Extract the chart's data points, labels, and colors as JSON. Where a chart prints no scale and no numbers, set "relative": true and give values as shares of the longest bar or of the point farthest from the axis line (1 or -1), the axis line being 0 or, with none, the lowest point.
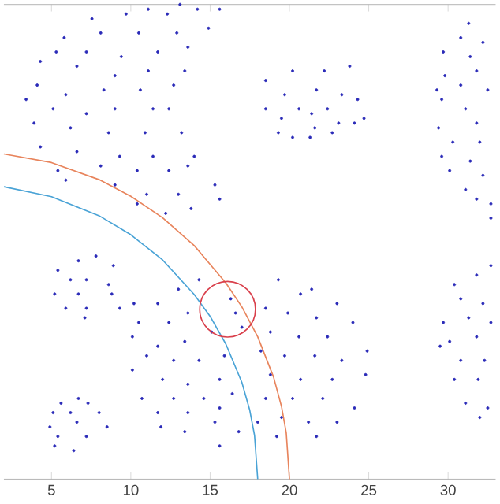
{
  "chart_data": {
    "type": "scatter",
    "relative": true,
    "marker": "circle",
    "xlim": [
      2,
      33
    ],
    "xticks": [
      5,
      10,
      15,
      20,
      25,
      30
    ],
    "series": [
      {
        "color": "#2a2ab8",
        "x": [
          7.55,
          9.7,
          11.1,
          12.3,
          14.2,
          15.6,
          13.1,
          5.8,
          8.1,
          10.5,
          12.9,
          14.9,
          5.3,
          7.2,
          9.4,
          11.7,
          13.6,
          4.3,
          6.6,
          9.0,
          11.1,
          13.4,
          4.1,
          5.9,
          8.3,
          10.6,
          12.7,
          3.4,
          5.1,
          7.2,
          9.0,
          11.4,
          12.4,
          3.9,
          6.2,
          8.6,
          10.9,
          13.2,
          4.3,
          6.6,
          9.3,
          11.4,
          14.0,
          5.4,
          8.1,
          10.4,
          12.4,
          13.6,
          5.9,
          9.0,
          11.0,
          13.0,
          15.3,
          15.6,
          13.8,
          12.2,
          10.4,
          18.5,
          20.2,
          22.2,
          23.8,
          19.7,
          21.7,
          23.3,
          24.3,
          18.5,
          20.6,
          22.4,
          24.7,
          19.5,
          21.4,
          23.1,
          19.3,
          21.6,
          24.1,
          20.2,
          21.3,
          22.7,
          31.3,
          30.8,
          32.2,
          29.7,
          31.4,
          29.8,
          31.8,
          29.3,
          30.8,
          32.5,
          29.6,
          31.1,
          29.4,
          31.8,
          30.3,
          32.0,
          29.6,
          31.4,
          30.1,
          32.2,
          31.1,
          32.7,
          32.7,
          31.8,
          6.7,
          7.8,
          8.9,
          5.4,
          7.2,
          6.2,
          8.6,
          5.2,
          6.7,
          8.8,
          5.9,
          7.2,
          9.3,
          7.1,
          5.6,
          6.7,
          7.3,
          5.1,
          6.2,
          8.0,
          4.9,
          6.6,
          8.5,
          5.4,
          7.2,
          6.4,
          5.2,
          10.2,
          11.7,
          13.0,
          14.3,
          10.5,
          12.4,
          13.6,
          10.1,
          11.7,
          13.4,
          15.1,
          11.0,
          12.7,
          14.3,
          15.9,
          10.1,
          12.0,
          13.6,
          15.6,
          10.7,
          12.7,
          14.6,
          16.4,
          11.7,
          13.6,
          15.6,
          11.9,
          13.4,
          15.3,
          15.6,
          16.8,
          16.6,
          16.3,
          17.0,
          19.3,
          20.7,
          21.4,
          23.0,
          18.5,
          19.9,
          21.7,
          24.0,
          18.8,
          20.6,
          22.4,
          24.9,
          18.2,
          19.7,
          21.6,
          23.3,
          18.8,
          20.7,
          22.7,
          24.8,
          18.5,
          20.2,
          22.1,
          24.1,
          19.5,
          21.2,
          23.0,
          19.2,
          21.7,
          18.0,
          30.4,
          31.8,
          32.7,
          30.8,
          32.2,
          29.7,
          31.3,
          32.7,
          30.1,
          31.8,
          29.5,
          30.8,
          32.3,
          30.4,
          31.9,
          31.1,
          32.5,
          32.0
        ],
        "values": [
          0.97,
          0.98,
          0.99,
          0.98,
          0.99,
          0.99,
          1.0,
          0.93,
          0.94,
          0.94,
          0.94,
          0.95,
          0.9,
          0.9,
          0.89,
          0.9,
          0.91,
          0.88,
          0.87,
          0.85,
          0.86,
          0.86,
          0.83,
          0.81,
          0.82,
          0.82,
          0.83,
          0.8,
          0.78,
          0.77,
          0.78,
          0.78,
          0.78,
          0.75,
          0.74,
          0.73,
          0.73,
          0.73,
          0.7,
          0.69,
          0.68,
          0.68,
          0.68,
          0.65,
          0.66,
          0.65,
          0.65,
          0.66,
          0.63,
          0.62,
          0.6,
          0.6,
          0.62,
          0.59,
          0.57,
          0.56,
          0.58,
          0.84,
          0.86,
          0.86,
          0.87,
          0.81,
          0.82,
          0.81,
          0.8,
          0.78,
          0.78,
          0.78,
          0.76,
          0.76,
          0.77,
          0.75,
          0.73,
          0.74,
          0.75,
          0.72,
          0.72,
          0.73,
          0.96,
          0.93,
          0.92,
          0.9,
          0.89,
          0.85,
          0.86,
          0.82,
          0.83,
          0.82,
          0.8,
          0.78,
          0.74,
          0.75,
          0.71,
          0.71,
          0.68,
          0.67,
          0.65,
          0.64,
          0.61,
          0.58,
          0.55,
          0.59,
          0.46,
          0.47,
          0.45,
          0.44,
          0.42,
          0.42,
          0.41,
          0.39,
          0.39,
          0.39,
          0.36,
          0.36,
          0.36,
          0.34,
          0.16,
          0.17,
          0.16,
          0.14,
          0.14,
          0.14,
          0.11,
          0.12,
          0.11,
          0.09,
          0.09,
          0.06,
          0.07,
          0.37,
          0.37,
          0.4,
          0.42,
          0.33,
          0.33,
          0.35,
          0.3,
          0.28,
          0.29,
          0.31,
          0.26,
          0.25,
          0.25,
          0.26,
          0.23,
          0.21,
          0.2,
          0.21,
          0.17,
          0.17,
          0.17,
          0.18,
          0.14,
          0.14,
          0.15,
          0.11,
          0.1,
          0.12,
          0.07,
          0.1,
          0.35,
          0.38,
          0.32,
          0.42,
          0.39,
          0.4,
          0.37,
          0.36,
          0.35,
          0.34,
          0.33,
          0.31,
          0.3,
          0.3,
          0.27,
          0.27,
          0.26,
          0.26,
          0.25,
          0.22,
          0.21,
          0.21,
          0.22,
          0.17,
          0.17,
          0.17,
          0.15,
          0.13,
          0.12,
          0.12,
          0.09,
          0.09,
          0.12,
          0.41,
          0.43,
          0.45,
          0.38,
          0.37,
          0.33,
          0.34,
          0.33,
          0.29,
          0.3,
          0.28,
          0.25,
          0.25,
          0.21,
          0.21,
          0.16,
          0.15,
          0.13
        ]
      },
      {
        "type": "line",
        "marker": "none",
        "color": "#e8845c",
        "x": [
          2,
          5,
          8,
          10,
          12,
          14,
          16,
          17,
          18,
          19,
          19.5,
          19.8,
          20
        ],
        "values": [
          0.685,
          0.667,
          0.631,
          0.596,
          0.551,
          0.492,
          0.413,
          0.363,
          0.3,
          0.215,
          0.153,
          0.097,
          0
        ]
      },
      {
        "type": "line",
        "marker": "none",
        "color": "#4aa3d6",
        "x": [
          2,
          5,
          8,
          10,
          12,
          14,
          15,
          16,
          17,
          17.5,
          17.8,
          18
        ],
        "values": [
          0.616,
          0.595,
          0.555,
          0.515,
          0.462,
          0.389,
          0.343,
          0.284,
          0.204,
          0.145,
          0.092,
          0
        ]
      }
    ]
  }
}
